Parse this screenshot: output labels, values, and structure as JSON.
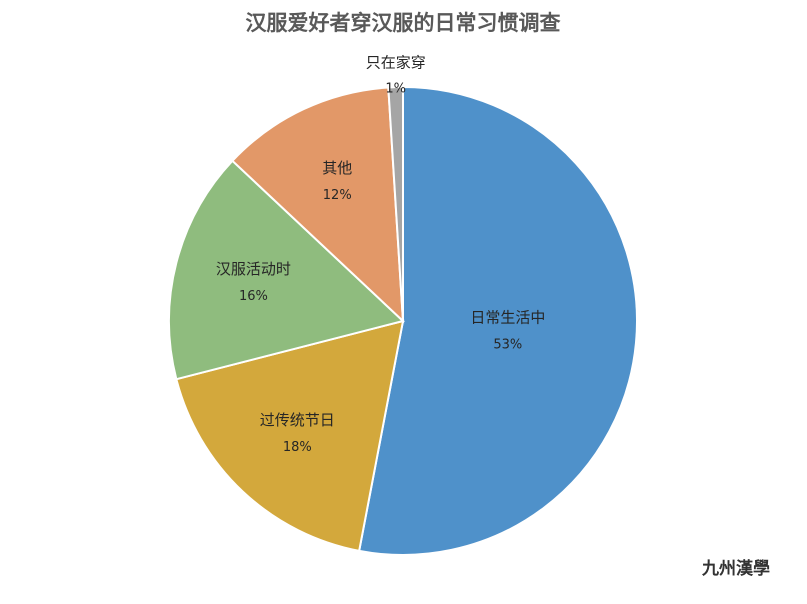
{
  "chart_data": {
    "type": "pie",
    "title": "汉服爱好者穿汉服的日常习惯调查",
    "categories": [
      "日常生活中",
      "过传统节日",
      "汉服活动时",
      "其他",
      "只在家穿"
    ],
    "values": [
      53,
      18,
      16,
      12,
      1
    ],
    "value_labels": [
      "53%",
      "18%",
      "16%",
      "12%",
      "1%"
    ],
    "colors": [
      "#4f91ca",
      "#d3a83c",
      "#8fbc7e",
      "#e29868",
      "#a5a5a5"
    ],
    "watermark": "九州漢學"
  }
}
